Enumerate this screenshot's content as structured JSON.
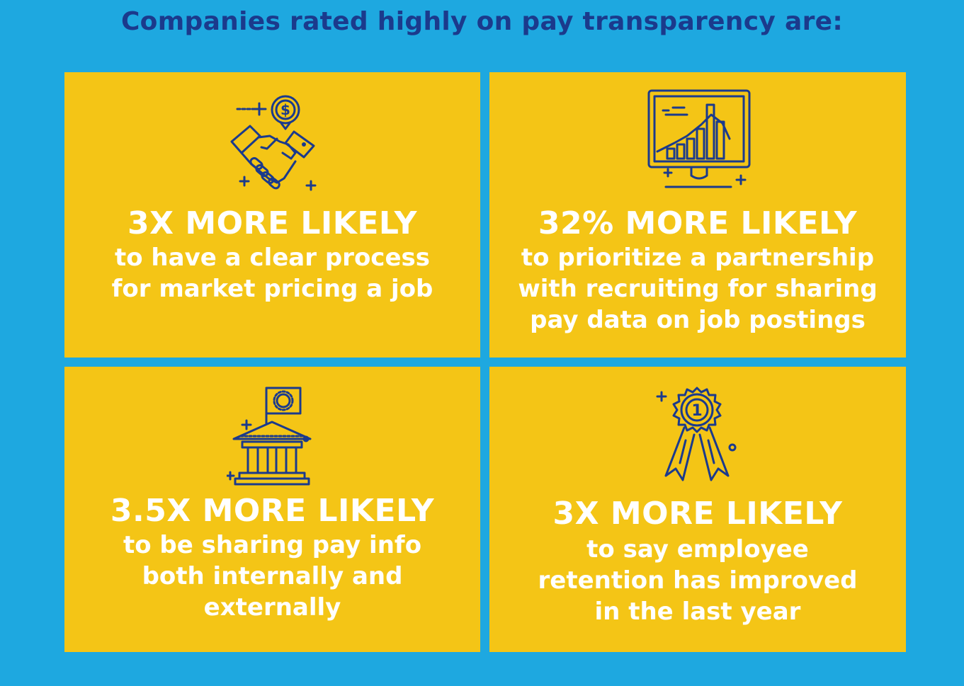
{
  "title": "Companies rated highly on pay transparency are:",
  "colors": {
    "background": "#1EA8E0",
    "card": "#F4C516",
    "title_text": "#1B3A8C",
    "card_text": "#FFFFFF",
    "icon_stroke": "#1B3A8C"
  },
  "cards": [
    {
      "icon": "handshake-dollar-icon",
      "headline": "3X MORE LIKELY",
      "lines": [
        "to have a clear process",
        "for market pricing a job"
      ]
    },
    {
      "icon": "monitor-bar-chart-icon",
      "headline": "32% MORE LIKELY",
      "lines": [
        "to prioritize a partnership",
        "with recruiting for sharing",
        "pay data on job postings"
      ]
    },
    {
      "icon": "bank-building-flag-icon",
      "headline": "3.5X MORE LIKELY",
      "lines": [
        "to be sharing pay info",
        "both internally and",
        "externally"
      ]
    },
    {
      "icon": "award-ribbon-icon",
      "headline": "3X MORE LIKELY",
      "lines": [
        "to say employee",
        "retention has improved",
        "in the last year"
      ]
    }
  ]
}
